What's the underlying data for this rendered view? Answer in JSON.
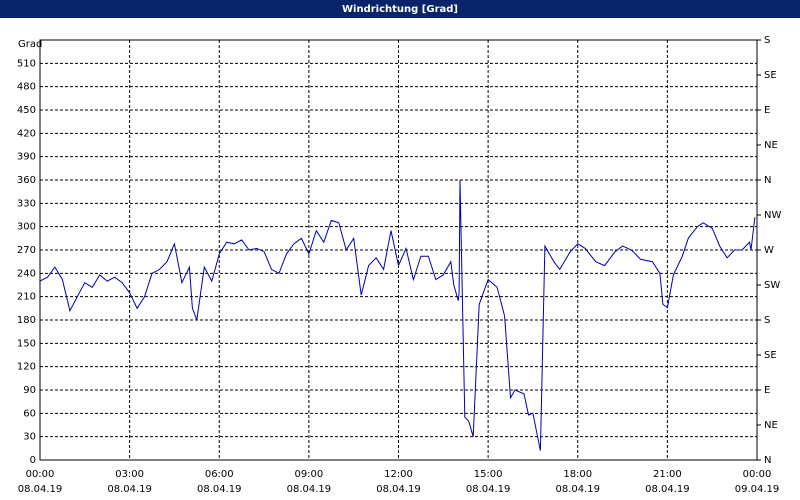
{
  "chart_data": {
    "type": "line",
    "title": "Windrichtung [Grad]",
    "ylabel": "Grad",
    "x": [
      0,
      0.25,
      0.5,
      0.75,
      1.0,
      1.25,
      1.5,
      1.75,
      2.0,
      2.25,
      2.5,
      2.75,
      3.0,
      3.25,
      3.5,
      3.75,
      4.0,
      4.25,
      4.5,
      4.75,
      5.0,
      5.1,
      5.25,
      5.5,
      5.75,
      6.0,
      6.25,
      6.5,
      6.75,
      7.0,
      7.25,
      7.5,
      7.75,
      8.0,
      8.25,
      8.5,
      8.75,
      9.0,
      9.25,
      9.5,
      9.75,
      10.0,
      10.25,
      10.5,
      10.75,
      11.0,
      11.25,
      11.5,
      11.75,
      12.0,
      12.25,
      12.5,
      12.75,
      13.0,
      13.25,
      13.5,
      13.75,
      13.85,
      14.0,
      14.03,
      14.06,
      14.22,
      14.35,
      14.5,
      14.7,
      15.0,
      15.3,
      15.55,
      15.75,
      15.9,
      16.2,
      16.35,
      16.5,
      16.75,
      16.9,
      17.2,
      17.4,
      17.75,
      18.0,
      18.25,
      18.6,
      18.9,
      19.25,
      19.5,
      19.8,
      20.1,
      20.5,
      20.75,
      20.85,
      21.0,
      21.2,
      21.5,
      21.7,
      22.0,
      22.2,
      22.5,
      22.75,
      23.0,
      23.25,
      23.5,
      23.75,
      23.8,
      23.93
    ],
    "series": [
      {
        "name": "Windrichtung",
        "color": "#0000b0",
        "values": [
          230,
          235,
          248,
          232,
          192,
          210,
          228,
          222,
          238,
          230,
          235,
          228,
          215,
          195,
          210,
          240,
          245,
          255,
          278,
          228,
          248,
          195,
          180,
          248,
          230,
          265,
          280,
          278,
          283,
          270,
          272,
          268,
          245,
          240,
          265,
          278,
          285,
          265,
          295,
          280,
          308,
          305,
          270,
          285,
          212,
          250,
          260,
          245,
          295,
          250,
          272,
          232,
          262,
          262,
          232,
          238,
          255,
          225,
          205,
          215,
          360,
          55,
          50,
          30,
          200,
          232,
          222,
          185,
          80,
          90,
          85,
          58,
          60,
          12,
          275,
          255,
          245,
          268,
          278,
          272,
          255,
          250,
          268,
          275,
          270,
          258,
          255,
          240,
          200,
          196,
          238,
          262,
          285,
          300,
          305,
          298,
          275,
          260,
          270,
          270,
          280,
          270,
          312
        ]
      }
    ],
    "xlim": [
      0,
      24
    ],
    "xticks": [
      {
        "value": 0,
        "label": "00:00"
      },
      {
        "value": 3,
        "label": "03:00"
      },
      {
        "value": 6,
        "label": "06:00"
      },
      {
        "value": 9,
        "label": "09:00"
      },
      {
        "value": 12,
        "label": "12:00"
      },
      {
        "value": 15,
        "label": "15:00"
      },
      {
        "value": 18,
        "label": "18:00"
      },
      {
        "value": 21,
        "label": "21:00"
      },
      {
        "value": 24,
        "label": "00:00"
      }
    ],
    "xtick_dates": [
      "08.04.19",
      "08.04.19",
      "08.04.19",
      "08.04.19",
      "08.04.19",
      "08.04.19",
      "08.04.19",
      "08.04.19",
      "09.04.19"
    ],
    "ylim": [
      0,
      540
    ],
    "yticks": [
      0,
      30,
      60,
      90,
      120,
      150,
      180,
      210,
      240,
      270,
      300,
      330,
      360,
      390,
      420,
      450,
      480,
      510
    ],
    "y2lim": [
      0,
      540
    ],
    "y2ticks": [
      {
        "value": 0,
        "label": "N"
      },
      {
        "value": 45,
        "label": "NE"
      },
      {
        "value": 90,
        "label": "E"
      },
      {
        "value": 135,
        "label": "SE"
      },
      {
        "value": 180,
        "label": "S"
      },
      {
        "value": 225,
        "label": "SW"
      },
      {
        "value": 270,
        "label": "W"
      },
      {
        "value": 315,
        "label": "NW"
      },
      {
        "value": 360,
        "label": "N"
      },
      {
        "value": 405,
        "label": "NE"
      },
      {
        "value": 450,
        "label": "E"
      },
      {
        "value": 495,
        "label": "SE"
      },
      {
        "value": 540,
        "label": "S"
      }
    ],
    "grid": true
  }
}
